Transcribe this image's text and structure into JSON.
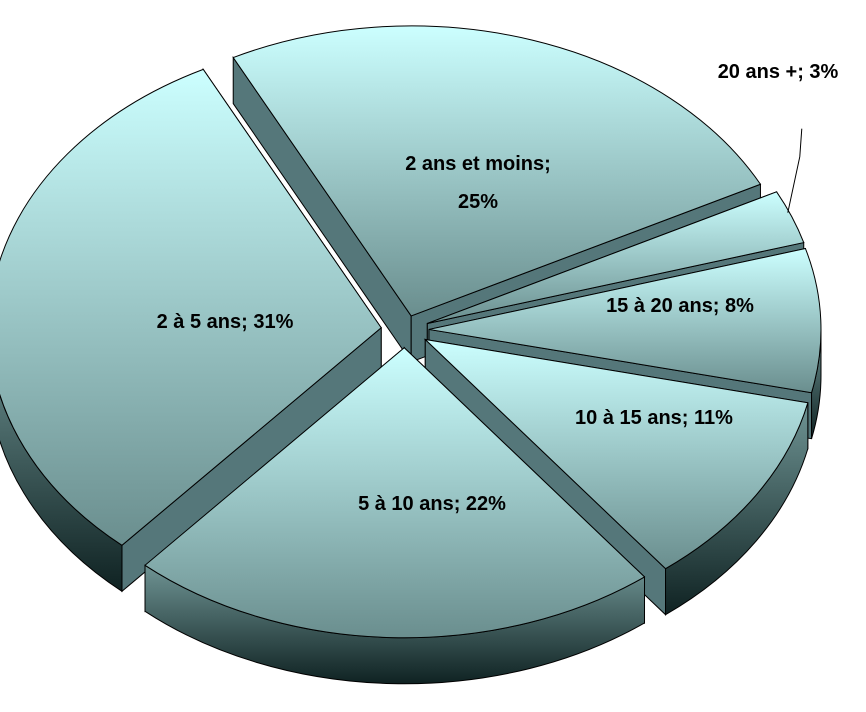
{
  "chart_data": {
    "type": "pie",
    "style": "3d-exploded",
    "slices": [
      {
        "label": "2 ans et moins",
        "value": 25,
        "display": "25%"
      },
      {
        "label": "20 ans +",
        "value": 3,
        "display": "3%"
      },
      {
        "label": "15 à 20 ans",
        "value": 8,
        "display": "8%"
      },
      {
        "label": "10 à 15 ans",
        "value": 11,
        "display": "11%"
      },
      {
        "label": "5 à 10 ans",
        "value": 22,
        "display": "22%"
      },
      {
        "label": "2 à 5 ans",
        "value": 31,
        "display": "31%"
      }
    ],
    "legend": "none",
    "colors": {
      "top_light": "#ccffff",
      "top_dark": "#6a8e8e",
      "side_light": "#6f9494",
      "side_dark": "#0f2222",
      "edge": "#000000"
    }
  }
}
